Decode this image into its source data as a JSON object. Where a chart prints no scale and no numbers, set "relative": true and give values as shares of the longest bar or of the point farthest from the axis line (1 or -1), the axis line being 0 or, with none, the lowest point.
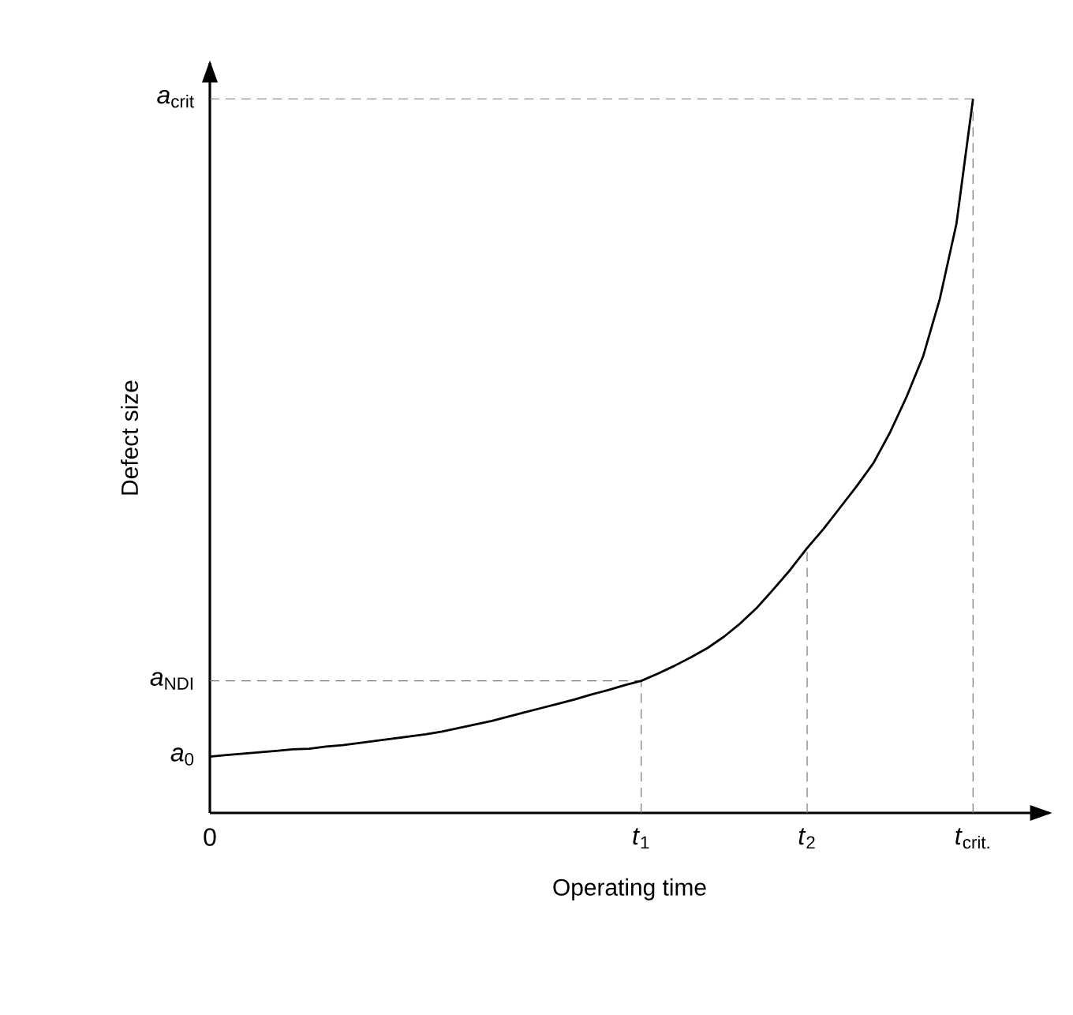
{
  "chart_data": {
    "type": "line",
    "xlabel": "Operating time",
    "ylabel": "Defect size",
    "relative": true,
    "categories": [
      "0",
      null,
      null,
      null,
      null,
      null,
      null,
      null,
      null,
      null,
      null,
      null,
      null,
      null,
      null,
      null,
      null,
      null,
      null,
      null,
      null,
      null,
      null,
      null,
      null,
      null,
      "*t*$_{1}$",
      null,
      null,
      null,
      null,
      null,
      null,
      null,
      null,
      null,
      "*t*$_{2}$",
      null,
      null,
      null,
      null,
      null,
      null,
      null,
      null,
      null,
      "*t*$_{crit.}$"
    ],
    "ref_lines": [
      {
        "axis": "y",
        "value": 1,
        "label": "*a*$_{crit}$",
        "color": "#777777",
        "line_style": "dashed"
      },
      {
        "axis": "y",
        "value": 0.185,
        "label": "*a*$_{NDI}$",
        "color": "#777777",
        "line_style": "dashed"
      },
      {
        "axis": "x",
        "value": "*t*$_{1}$",
        "color": "#777777",
        "line_style": "dashed"
      },
      {
        "axis": "x",
        "value": "*t*$_{2}$",
        "color": "#777777",
        "line_style": "dashed"
      },
      {
        "axis": "x",
        "value": "*t*$_{crit.}$",
        "color": "#777777",
        "line_style": "dashed"
      }
    ],
    "annotations": [
      {
        "text": "*a*$_{0}$",
        "x": "0",
        "y": 0.079
      }
    ],
    "series": [
      {
        "color": "#000000",
        "line_style": "solid",
        "values": [
          0.079,
          0.081,
          0.083,
          0.085,
          0.087,
          0.089,
          0.09,
          0.093,
          0.095,
          0.098,
          0.101,
          0.104,
          0.107,
          0.11,
          0.114,
          0.119,
          0.124,
          0.129,
          0.135,
          0.141,
          0.147,
          0.153,
          0.159,
          0.166,
          0.172,
          0.179,
          0.185,
          0.195,
          0.206,
          0.218,
          0.231,
          0.247,
          0.266,
          0.288,
          0.314,
          0.341,
          0.371,
          0.398,
          0.428,
          0.458,
          0.49,
          0.533,
          0.583,
          0.64,
          0.72,
          0.825,
          1
        ]
      }
    ]
  }
}
